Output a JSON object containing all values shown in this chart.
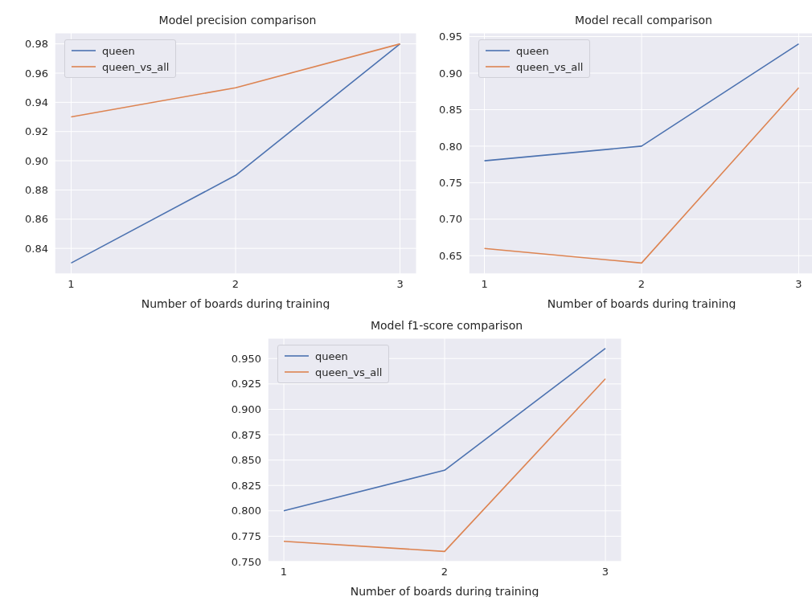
{
  "chart_data": [
    {
      "type": "line",
      "title": "Model precision comparison",
      "xlabel": "Number of boards during training",
      "x": [
        1,
        2,
        3
      ],
      "xlim": [
        0.9,
        3.1
      ],
      "xticks": [
        1,
        2,
        3
      ],
      "ylim": [
        0.8225,
        0.9875
      ],
      "yticks": [
        0.84,
        0.86,
        0.88,
        {
          "value": 0.9,
          "label": "0.90"
        },
        0.92,
        0.94,
        0.96,
        0.98
      ],
      "grid": true,
      "legend": "top left",
      "marker": "none",
      "line_style": "solid",
      "series": [
        {
          "name": "queen",
          "color": "#4c72b0",
          "values": [
            0.83,
            0.89,
            0.98
          ]
        },
        {
          "name": "queen_vs_all",
          "color": "#dd8452",
          "values": [
            0.93,
            0.95,
            0.98
          ]
        }
      ]
    },
    {
      "type": "line",
      "title": "Model recall comparison",
      "xlabel": "Number of boards during training",
      "x": [
        1,
        2,
        3
      ],
      "xlim": [
        0.9,
        3.1
      ],
      "xticks": [
        1,
        2,
        3
      ],
      "ylim": [
        0.625,
        0.955
      ],
      "yticks": [
        0.65,
        {
          "value": 0.7,
          "label": "0.70"
        },
        0.75,
        {
          "value": 0.8,
          "label": "0.80"
        },
        0.85,
        {
          "value": 0.9,
          "label": "0.90"
        },
        0.95
      ],
      "grid": true,
      "legend": "top left",
      "marker": "none",
      "line_style": "solid",
      "series": [
        {
          "name": "queen",
          "color": "#4c72b0",
          "values": [
            0.78,
            0.8,
            0.94
          ]
        },
        {
          "name": "queen_vs_all",
          "color": "#dd8452",
          "values": [
            0.66,
            0.64,
            0.88
          ]
        }
      ]
    },
    {
      "type": "line",
      "title": "Model f1-score comparison",
      "xlabel": "Number of boards during training",
      "x": [
        1,
        2,
        3
      ],
      "xlim": [
        0.9,
        3.1
      ],
      "xticks": [
        1,
        2,
        3
      ],
      "ylim": [
        0.75,
        0.97
      ],
      "yticks": [
        {
          "value": 0.75,
          "label": "0.750"
        },
        0.775,
        {
          "value": 0.8,
          "label": "0.800"
        },
        0.825,
        {
          "value": 0.85,
          "label": "0.850"
        },
        0.875,
        {
          "value": 0.9,
          "label": "0.900"
        },
        0.925,
        {
          "value": 0.95,
          "label": "0.950"
        }
      ],
      "grid": true,
      "legend": "top left",
      "marker": "none",
      "line_style": "solid",
      "series": [
        {
          "name": "queen",
          "color": "#4c72b0",
          "values": [
            0.8,
            0.84,
            0.96
          ]
        },
        {
          "name": "queen_vs_all",
          "color": "#dd8452",
          "values": [
            0.77,
            0.76,
            0.93
          ]
        }
      ]
    }
  ]
}
